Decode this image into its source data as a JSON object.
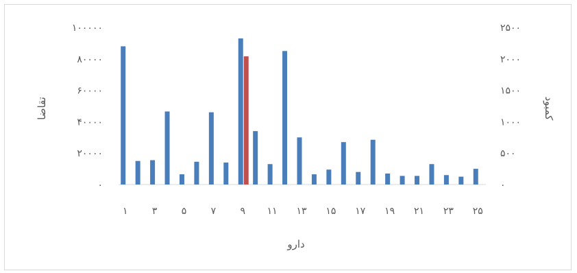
{
  "chart_data": {
    "type": "bar",
    "xlabel": "دارو",
    "ylabel_left": "تقاضا",
    "ylabel_right": "کمبود",
    "ylim_left": [
      0,
      100000
    ],
    "ylim_right": [
      0,
      2500
    ],
    "left_ticks": [
      "۰",
      "۲۰۰۰۰",
      "۴۰۰۰۰",
      "۶۰۰۰۰",
      "۸۰۰۰۰",
      "۱۰۰۰۰۰"
    ],
    "right_ticks": [
      "۰",
      "۵۰۰",
      "۱۰۰۰",
      "۱۵۰۰",
      "۲۰۰۰",
      "۲۵۰۰"
    ],
    "categories": [
      1,
      2,
      3,
      4,
      5,
      6,
      7,
      8,
      9,
      10,
      11,
      12,
      13,
      14,
      15,
      16,
      17,
      18,
      19,
      20,
      21,
      22,
      23,
      24,
      25
    ],
    "x_tick_labels": [
      "۱",
      "۳",
      "۵",
      "۷",
      "۹",
      "۱۱",
      "۱۳",
      "۱۵",
      "۱۷",
      "۱۹",
      "۲۱",
      "۲۳",
      "۲۵"
    ],
    "series": [
      {
        "axis": "left",
        "color": "#4a7ebb",
        "values": [
          88000,
          15000,
          15500,
          46500,
          6500,
          14500,
          46000,
          14000,
          93000,
          34000,
          13000,
          85000,
          30000,
          6500,
          9500,
          27000,
          8000,
          28500,
          7000,
          5500,
          5500,
          13000,
          6000,
          5000,
          10000
        ]
      },
      {
        "axis": "right",
        "color": "#c0504d",
        "values": [
          0,
          0,
          0,
          0,
          0,
          0,
          0,
          0,
          2040,
          0,
          0,
          0,
          0,
          0,
          0,
          0,
          0,
          0,
          0,
          0,
          0,
          0,
          0,
          0,
          0
        ]
      }
    ],
    "grid": false,
    "legend": "none"
  }
}
